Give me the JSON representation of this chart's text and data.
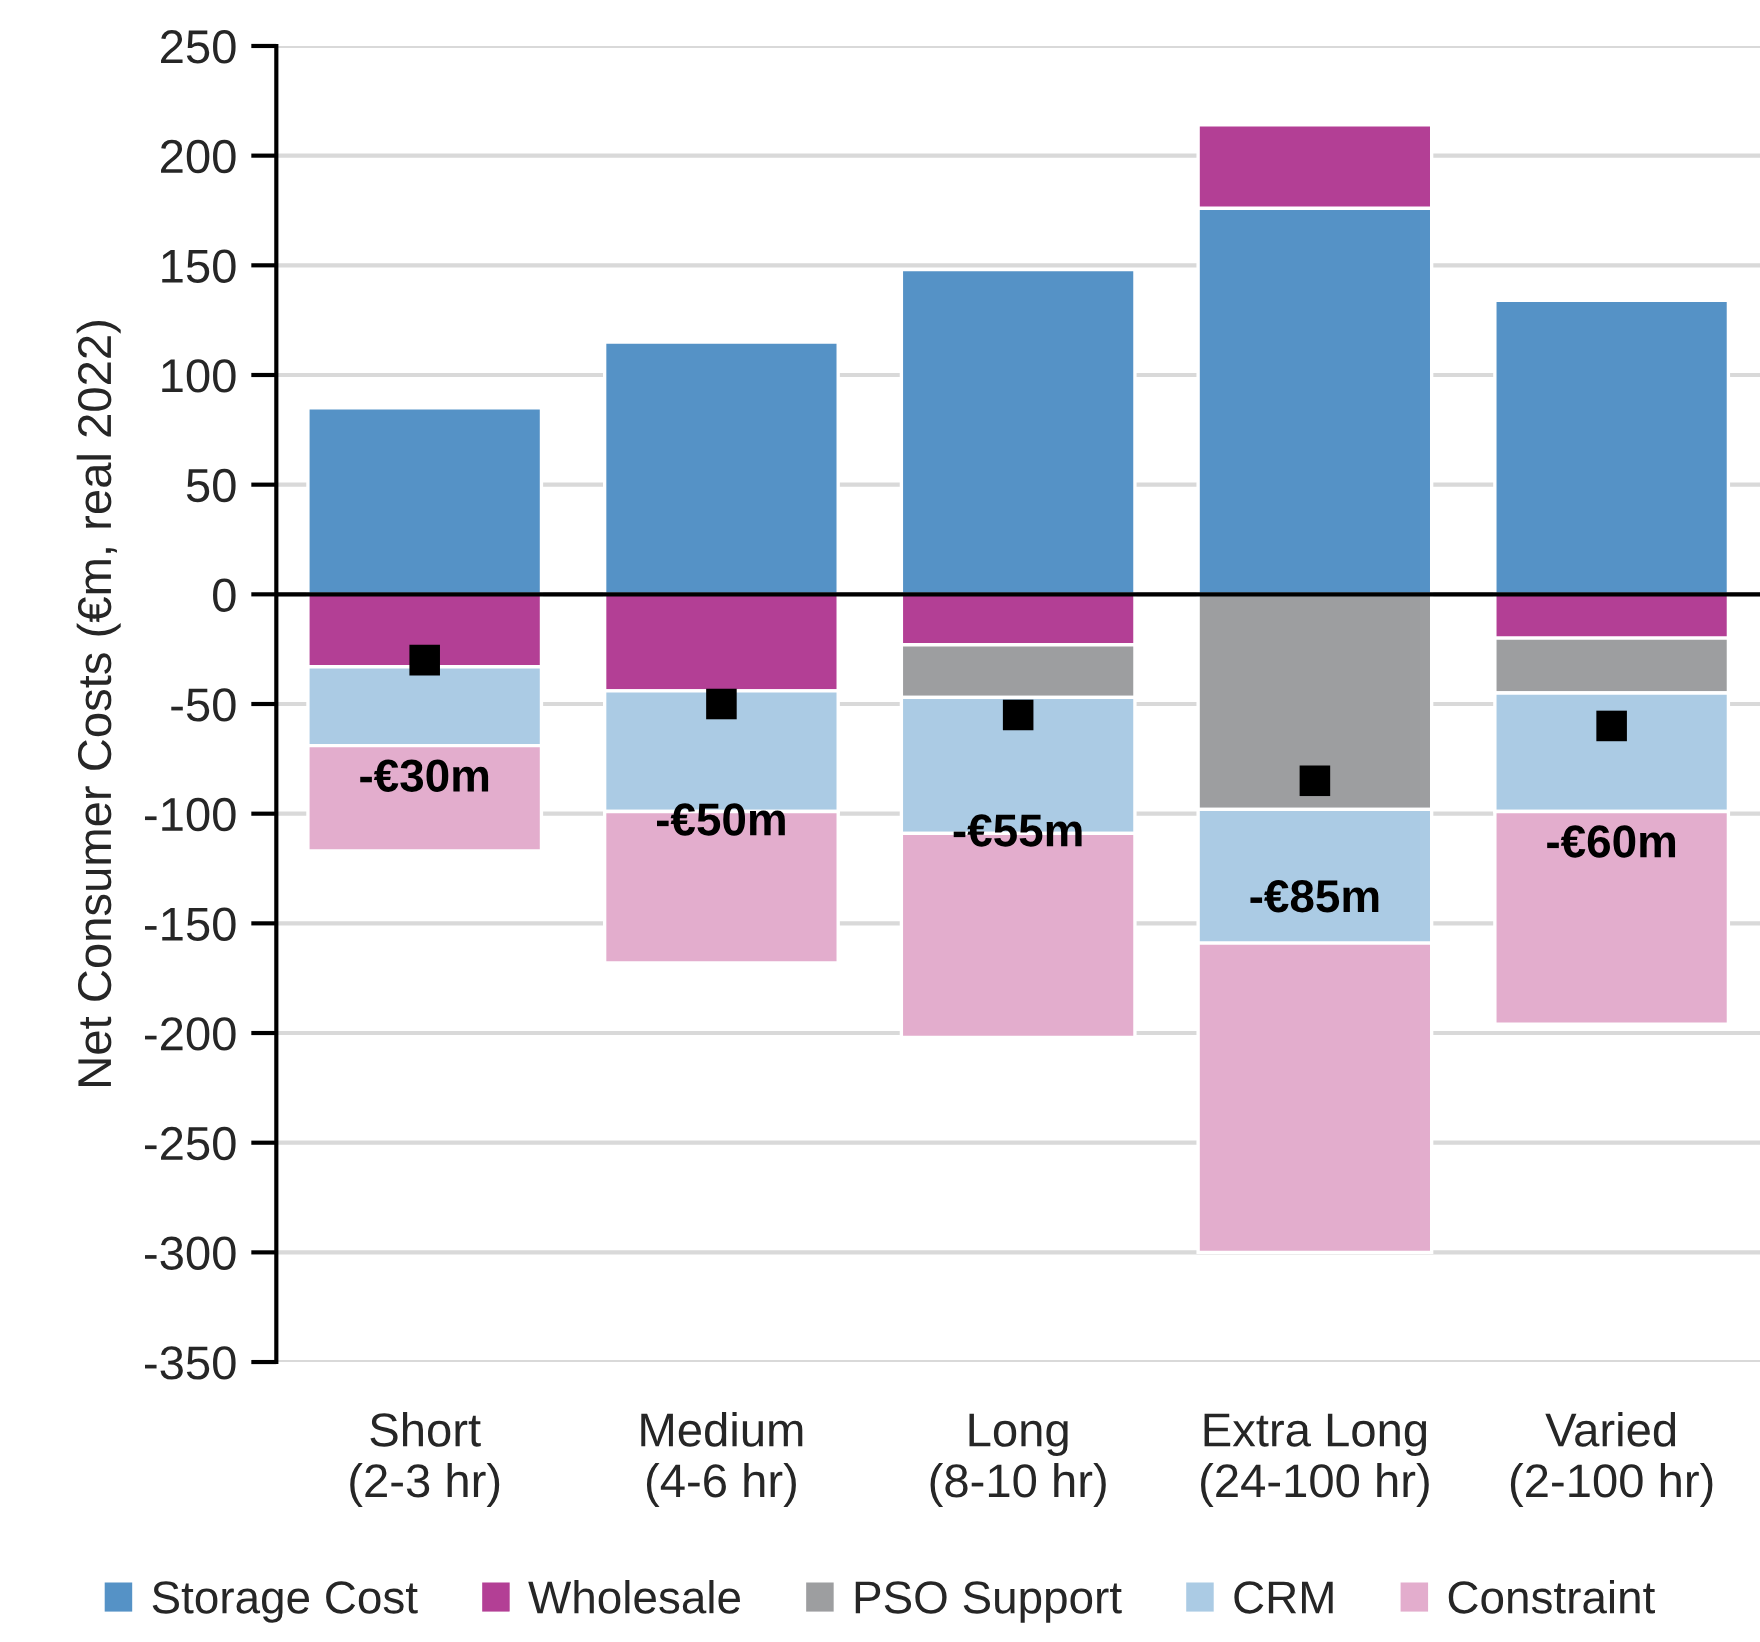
{
  "chart_data": {
    "type": "bar",
    "stacked": true,
    "ylabel": "Net Consumer Costs (€m, real 2022)",
    "categories": [
      "Short\n(2-3 hr)",
      "Medium\n(4-6 hr)",
      "Long\n(8-10 hr)",
      "Extra Long\n(24-100 hr)",
      "Varied\n(2-100 hr)"
    ],
    "series": [
      {
        "name": "Storage Cost",
        "color": "#5592c6",
        "values": [
          85,
          115,
          148,
          176,
          134
        ]
      },
      {
        "name": "Wholesale",
        "color": "#b33f95",
        "values": [
          -33,
          -44,
          -23,
          38,
          -20
        ]
      },
      {
        "name": "PSO Support",
        "color": "#9d9ea0",
        "values": [
          null,
          null,
          -24,
          -98,
          -25
        ]
      },
      {
        "name": "CRM",
        "color": "#abcbe4",
        "values": [
          -36,
          -55,
          -62,
          -61,
          -54
        ]
      },
      {
        "name": "Constraint",
        "color": "#e3adcd",
        "values": [
          -48,
          -69,
          -93,
          -141,
          -97
        ]
      },
      {
        "type": "scatter",
        "marker": "square",
        "color": "#000000",
        "values": [
          -30,
          -50,
          -55,
          -85,
          -60
        ],
        "value_labels": [
          "-€30m",
          "-€50m",
          "-€55m",
          "-€85m",
          "-€60m"
        ]
      }
    ],
    "ylim": [
      -350,
      250
    ],
    "yticks": [
      -350,
      -300,
      -250,
      -200,
      -150,
      -100,
      -50,
      0,
      50,
      100,
      150,
      200,
      250
    ],
    "ref_lines": [
      {
        "axis": "y",
        "value": 0,
        "color": "#000000"
      }
    ],
    "grid": "y",
    "legend": "bottom"
  }
}
